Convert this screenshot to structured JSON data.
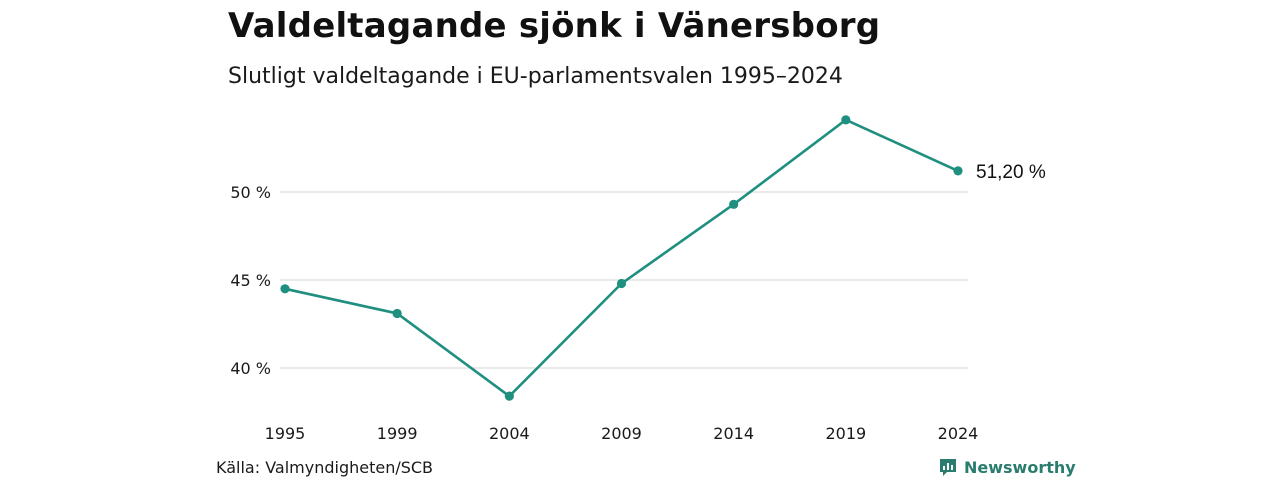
{
  "header": {
    "title": "Valdeltagande sjönk i Vänersborg",
    "subtitle": "Slutligt valdeltagande i EU-parlamentsvalen 1995–2024"
  },
  "footer": {
    "source": "Källa: Valmyndigheten/SCB",
    "brand": "Newsworthy"
  },
  "colors": {
    "line": "#1f8f80",
    "grid": "#dddddd",
    "brand": "#2a7d6e"
  },
  "icons": {
    "brand_logo": "newsworthy-logo-icon"
  },
  "chart_data": {
    "type": "line",
    "title": "Valdeltagande sjönk i Vänersborg",
    "subtitle": "Slutligt valdeltagande i EU-parlamentsvalen 1995–2024",
    "x": [
      "1995",
      "1999",
      "2004",
      "2009",
      "2014",
      "2019",
      "2024"
    ],
    "series": [
      {
        "values": [
          44.5,
          43.1,
          38.4,
          44.8,
          49.3,
          54.1,
          51.2
        ]
      }
    ],
    "ylim": [
      38,
      54.5
    ],
    "yticks": [
      40,
      45,
      50
    ],
    "ytick_labels": [
      "40 %",
      "45 %",
      "50 %"
    ],
    "end_label": "51,20 %",
    "grid": true,
    "legend": "none"
  }
}
